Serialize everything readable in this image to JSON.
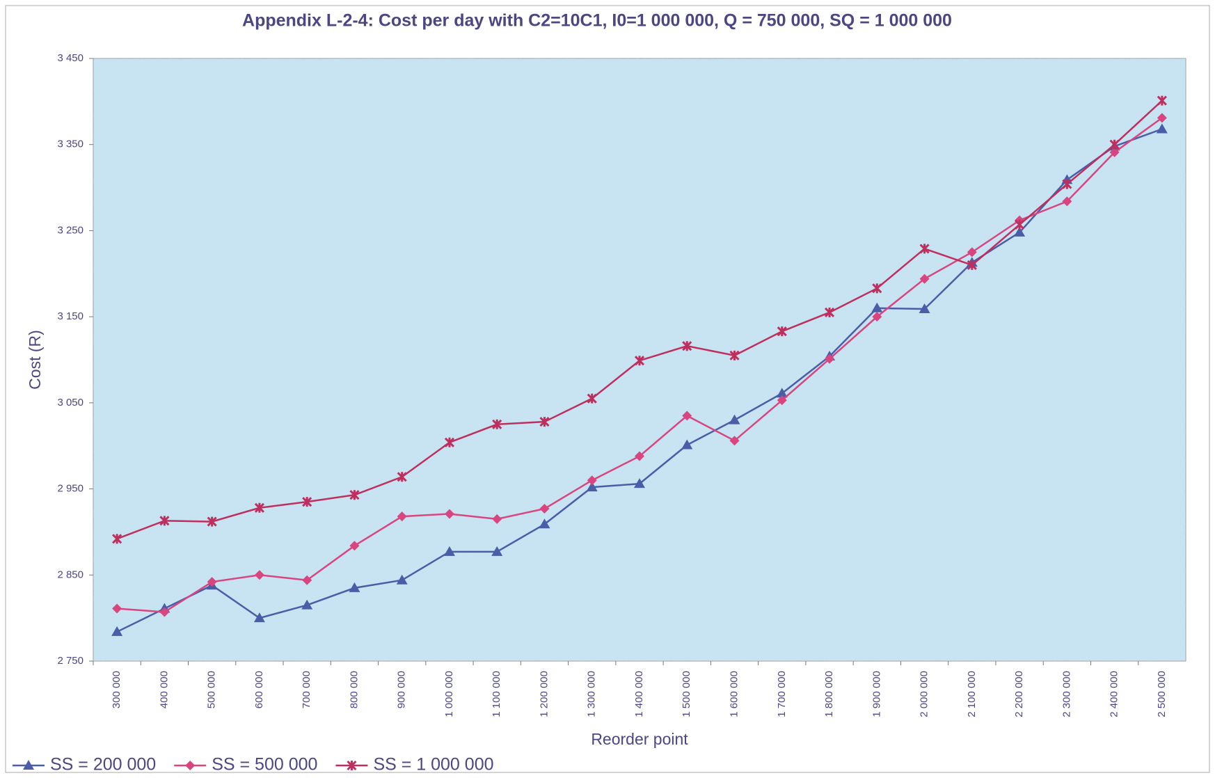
{
  "chart_data": {
    "type": "line",
    "title": "Appendix L-2-4: Cost per day with C2=10C1, I0=1 000 000, Q = 750 000, SQ = 1 000 000",
    "x_label": "Reorder point",
    "y_label": "Cost (R)",
    "categories": [
      "300 000",
      "400 000",
      "500 000",
      "600 000",
      "700 000",
      "800 000",
      "900 000",
      "1 000 000",
      "1 100 000",
      "1 200 000",
      "1 300 000",
      "1 400 000",
      "1 500 000",
      "1 600 000",
      "1 700 000",
      "1 800 000",
      "1 900 000",
      "2 000 000",
      "2 100 000",
      "2 200 000",
      "2 300 000",
      "2 400 000",
      "2 500 000"
    ],
    "series": [
      {
        "name": "SS = 200 000",
        "color": "#4a5ea8",
        "marker": "triangle",
        "values": [
          2784,
          2811,
          2838,
          2800,
          2815,
          2835,
          2844,
          2877,
          2877,
          2909,
          2952,
          2956,
          3001,
          3030,
          3061,
          3104,
          3160,
          3159,
          3213,
          3248,
          3309,
          3348,
          3368
        ]
      },
      {
        "name": "SS = 500 000",
        "color": "#d8457f",
        "marker": "diamond",
        "values": [
          2811,
          2807,
          2842,
          2850,
          2844,
          2884,
          2918,
          2921,
          2915,
          2927,
          2960,
          2988,
          3035,
          3006,
          3053,
          3101,
          3150,
          3194,
          3225,
          3262,
          3284,
          3341,
          3381
        ]
      },
      {
        "name": "SS = 1 000 000",
        "color": "#bf2f5e",
        "marker": "star",
        "values": [
          2892,
          2913,
          2912,
          2928,
          2935,
          2943,
          2964,
          3004,
          3025,
          3028,
          3055,
          3099,
          3116,
          3105,
          3133,
          3155,
          3183,
          3229,
          3210,
          3257,
          3304,
          3350,
          3401
        ]
      }
    ],
    "ylim": [
      2750,
      3450
    ],
    "yticks": [
      {
        "value": 2750,
        "label": "2 750"
      },
      {
        "value": 2850,
        "label": "2 850"
      },
      {
        "value": 2950,
        "label": "2 950"
      },
      {
        "value": 3050,
        "label": "3 050"
      },
      {
        "value": 3150,
        "label": "3 150"
      },
      {
        "value": 3250,
        "label": "3 250"
      },
      {
        "value": 3350,
        "label": "3 350"
      },
      {
        "value": 3450,
        "label": "3 450"
      }
    ],
    "legend": "bottom-left"
  }
}
